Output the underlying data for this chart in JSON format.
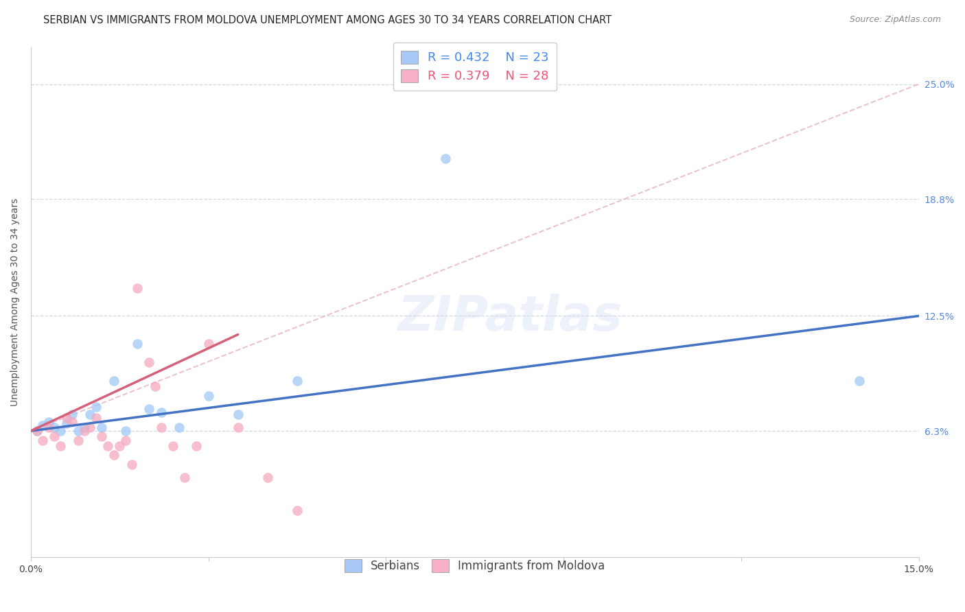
{
  "title": "SERBIAN VS IMMIGRANTS FROM MOLDOVA UNEMPLOYMENT AMONG AGES 30 TO 34 YEARS CORRELATION CHART",
  "source": "Source: ZipAtlas.com",
  "ylabel": "Unemployment Among Ages 30 to 34 years",
  "xlim": [
    0.0,
    0.15
  ],
  "ylim": [
    -0.005,
    0.27
  ],
  "ytick_values": [
    0.063,
    0.125,
    0.188,
    0.25
  ],
  "ytick_labels": [
    "6.3%",
    "12.5%",
    "18.8%",
    "25.0%"
  ],
  "background_color": "#ffffff",
  "grid_color": "#d0d8e8",
  "watermark_text": "ZIPatlas",
  "legend_entries": [
    {
      "label_r": "R = 0.432",
      "label_n": "N = 23",
      "color": "#a8c8f8"
    },
    {
      "label_r": "R = 0.379",
      "label_n": "N = 28",
      "color": "#f8b0c8"
    }
  ],
  "legend_labels_bottom": [
    "Serbians",
    "Immigrants from Moldova"
  ],
  "serbian_x": [
    0.001,
    0.002,
    0.003,
    0.004,
    0.005,
    0.006,
    0.007,
    0.008,
    0.009,
    0.01,
    0.011,
    0.012,
    0.014,
    0.016,
    0.018,
    0.02,
    0.022,
    0.025,
    0.03,
    0.035,
    0.045,
    0.07,
    0.14
  ],
  "serbian_y": [
    0.063,
    0.066,
    0.068,
    0.065,
    0.063,
    0.067,
    0.072,
    0.063,
    0.065,
    0.072,
    0.076,
    0.065,
    0.09,
    0.063,
    0.11,
    0.075,
    0.073,
    0.065,
    0.082,
    0.072,
    0.09,
    0.21,
    0.09
  ],
  "moldova_x": [
    0.001,
    0.002,
    0.003,
    0.004,
    0.005,
    0.006,
    0.007,
    0.008,
    0.009,
    0.01,
    0.011,
    0.012,
    0.013,
    0.014,
    0.015,
    0.016,
    0.017,
    0.018,
    0.02,
    0.021,
    0.022,
    0.024,
    0.026,
    0.028,
    0.03,
    0.035,
    0.04,
    0.045
  ],
  "moldova_y": [
    0.063,
    0.058,
    0.065,
    0.06,
    0.055,
    0.07,
    0.068,
    0.058,
    0.063,
    0.065,
    0.07,
    0.06,
    0.055,
    0.05,
    0.055,
    0.058,
    0.045,
    0.14,
    0.1,
    0.087,
    0.065,
    0.055,
    0.038,
    0.055,
    0.11,
    0.065,
    0.038,
    0.02
  ],
  "serbian_color": "#9fc8f5",
  "moldova_color": "#f5a8be",
  "serbian_line_color": "#4472c4",
  "moldova_line_color": "#d4607a",
  "dashed_line_color": "#e0aabb",
  "dashed_line_x": [
    0.0,
    0.15
  ],
  "dashed_line_y": [
    0.063,
    0.25
  ],
  "serbian_line_x": [
    0.0,
    0.15
  ],
  "serbian_line_y": [
    0.063,
    0.125
  ],
  "moldova_line_x": [
    0.0,
    0.035
  ],
  "moldova_line_y": [
    0.063,
    0.115
  ],
  "title_fontsize": 10.5,
  "axis_label_fontsize": 10,
  "tick_fontsize": 10,
  "legend_fontsize": 12,
  "scatter_size": 110
}
